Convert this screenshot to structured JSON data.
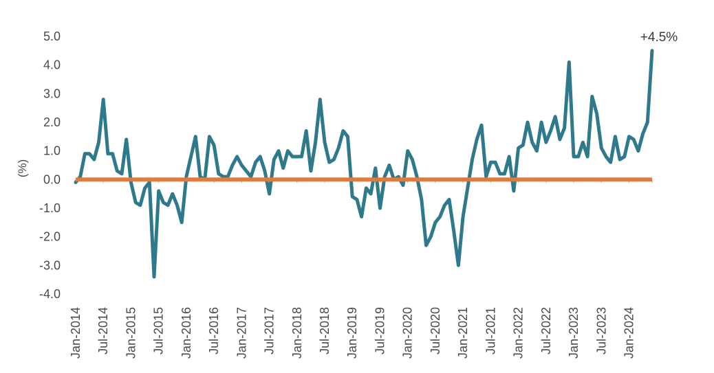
{
  "chart_data": {
    "type": "line",
    "title": "",
    "xlabel": "",
    "ylabel": "(%)",
    "ylim": [
      -4.0,
      5.0
    ],
    "y_ticks": [
      "5.0",
      "4.0",
      "3.0",
      "2.0",
      "1.0",
      "0.0",
      "-1.0",
      "-2.0",
      "-3.0",
      "-4.0"
    ],
    "x_ticks": [
      "Jan-2014",
      "Jul-2014",
      "Jan-2015",
      "Jul-2015",
      "Jan-2016",
      "Jul-2016",
      "Jan-2017",
      "Jul-2017",
      "Jan-2018",
      "Jul-2018",
      "Jan-2019",
      "Jul-2019",
      "Jan-2020",
      "Jul-2020",
      "Jan-2021",
      "Jul-2021",
      "Jan-2022",
      "Jul-2022",
      "Jan-2023",
      "Jul-2023",
      "Jan-2024"
    ],
    "x_start": "Jan-2014",
    "grid": false,
    "series": [
      {
        "name": "",
        "color": "#2e7a8c",
        "values": [
          -0.1,
          0.1,
          0.9,
          0.9,
          0.7,
          1.3,
          2.8,
          0.9,
          0.9,
          0.3,
          0.2,
          1.4,
          -0.1,
          -0.8,
          -0.9,
          -0.3,
          -0.1,
          -3.4,
          -0.4,
          -0.8,
          -0.9,
          -0.5,
          -0.9,
          -1.5,
          0.1,
          0.8,
          1.5,
          0.1,
          0.0,
          1.5,
          1.2,
          0.2,
          0.1,
          0.1,
          0.5,
          0.8,
          0.5,
          0.3,
          0.1,
          0.6,
          0.8,
          0.3,
          -0.5,
          0.7,
          1.0,
          0.4,
          1.0,
          0.8,
          0.8,
          0.8,
          1.7,
          0.3,
          1.3,
          2.8,
          1.3,
          0.6,
          0.7,
          1.1,
          1.7,
          1.5,
          -0.6,
          -0.7,
          -1.3,
          -0.3,
          -0.5,
          0.4,
          -1.0,
          0.1,
          0.5,
          0.0,
          0.1,
          -0.2,
          1.0,
          0.7,
          0.1,
          -0.7,
          -2.3,
          -2.0,
          -1.5,
          -1.3,
          -0.9,
          -0.7,
          -1.8,
          -3.0,
          -1.3,
          -0.3,
          0.7,
          1.4,
          1.9,
          0.1,
          0.6,
          0.6,
          0.2,
          0.2,
          0.8,
          -0.4,
          1.1,
          1.2,
          2.0,
          1.3,
          1.0,
          2.0,
          1.3,
          1.7,
          2.2,
          1.4,
          1.8,
          4.1,
          0.8,
          0.8,
          1.3,
          0.8,
          2.9,
          2.3,
          1.1,
          0.8,
          0.6,
          1.5,
          0.7,
          0.8,
          1.5,
          1.4,
          1.0,
          1.6,
          2.0,
          4.5
        ]
      },
      {
        "name": "",
        "color": "#e07b39",
        "values": [
          0.0,
          0.0
        ]
      }
    ],
    "annotations": [
      {
        "text": "+4.5%",
        "x": "Dec-2024",
        "y": 4.5
      }
    ]
  }
}
